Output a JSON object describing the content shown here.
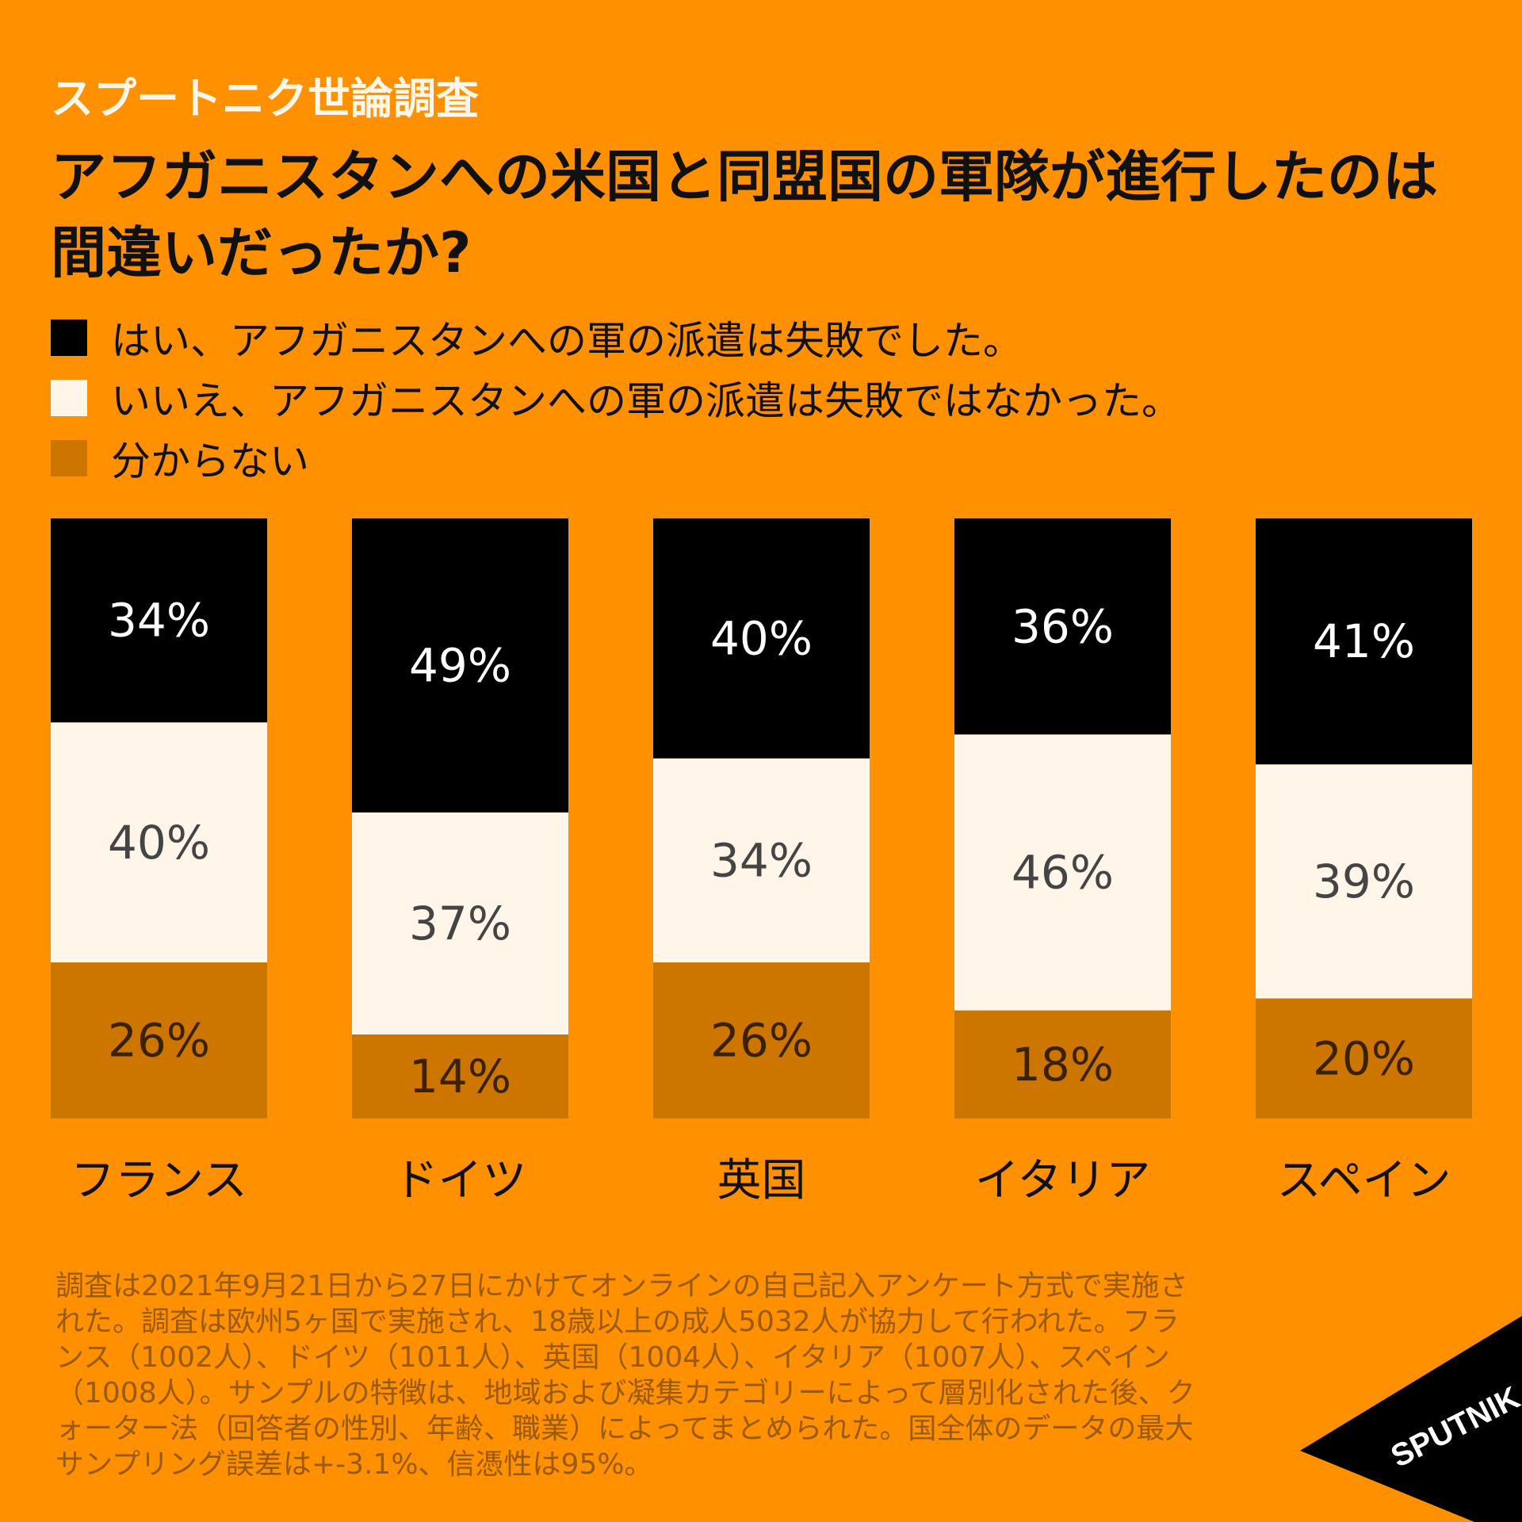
{
  "header": {
    "brand": "スプートニク世論調査",
    "title": "アフガニスタンへの米国と同盟国の軍隊が進行したのは間違いだったか?"
  },
  "legend": [
    {
      "label": "はい、アフガニスタンへの軍の派遣は失敗でした。",
      "color": "#000000"
    },
    {
      "label": "いいえ、アフガニスタンへの軍の派遣は失敗ではなかった。",
      "color": "#FFF5E9"
    },
    {
      "label": "分からない",
      "color": "#CC7600"
    }
  ],
  "chart_data": {
    "type": "bar",
    "stacked": true,
    "categories": [
      "フランス",
      "ドイツ",
      "英国",
      "イタリア",
      "スペイン"
    ],
    "series": [
      {
        "name": "はい、アフガニスタンへの軍の派遣は失敗でした。",
        "values": [
          34,
          49,
          40,
          36,
          41
        ],
        "color": "#000000",
        "label_color": "#FFFFFF"
      },
      {
        "name": "いいえ、アフガニスタンへの軍の派遣は失敗ではなかった。",
        "values": [
          40,
          37,
          34,
          46,
          39
        ],
        "color": "#FFF5E9",
        "label_color": "#444444"
      },
      {
        "name": "分からない",
        "values": [
          26,
          14,
          26,
          18,
          20
        ],
        "color": "#CC7600",
        "label_color": "#3A2200"
      }
    ],
    "unit": "%",
    "ylim": [
      0,
      100
    ],
    "grid": false
  },
  "footnote": "調査は2021年9月21日から27日にかけてオンラインの自己記入アンケート方式で実施された。調査は欧州5ヶ国で実施され、18歳以上の成人5032人が協力して行われた。フランス（1002人）、ドイツ（1011人）、英国（1004人）、イタリア（1007人）、スペイン（1008人）。サンプルの特徴は、地域および凝集カテゴリーによって層別化された後、クォーター法（回答者の性別、年齢、職業）によってまとめられた。国全体のデータの最大サンプリング誤差は+-3.1%、信憑性は95%。",
  "logo": {
    "text": "SPUTNIK",
    "bg_color": "#000000",
    "text_color": "#FFFFFF"
  }
}
